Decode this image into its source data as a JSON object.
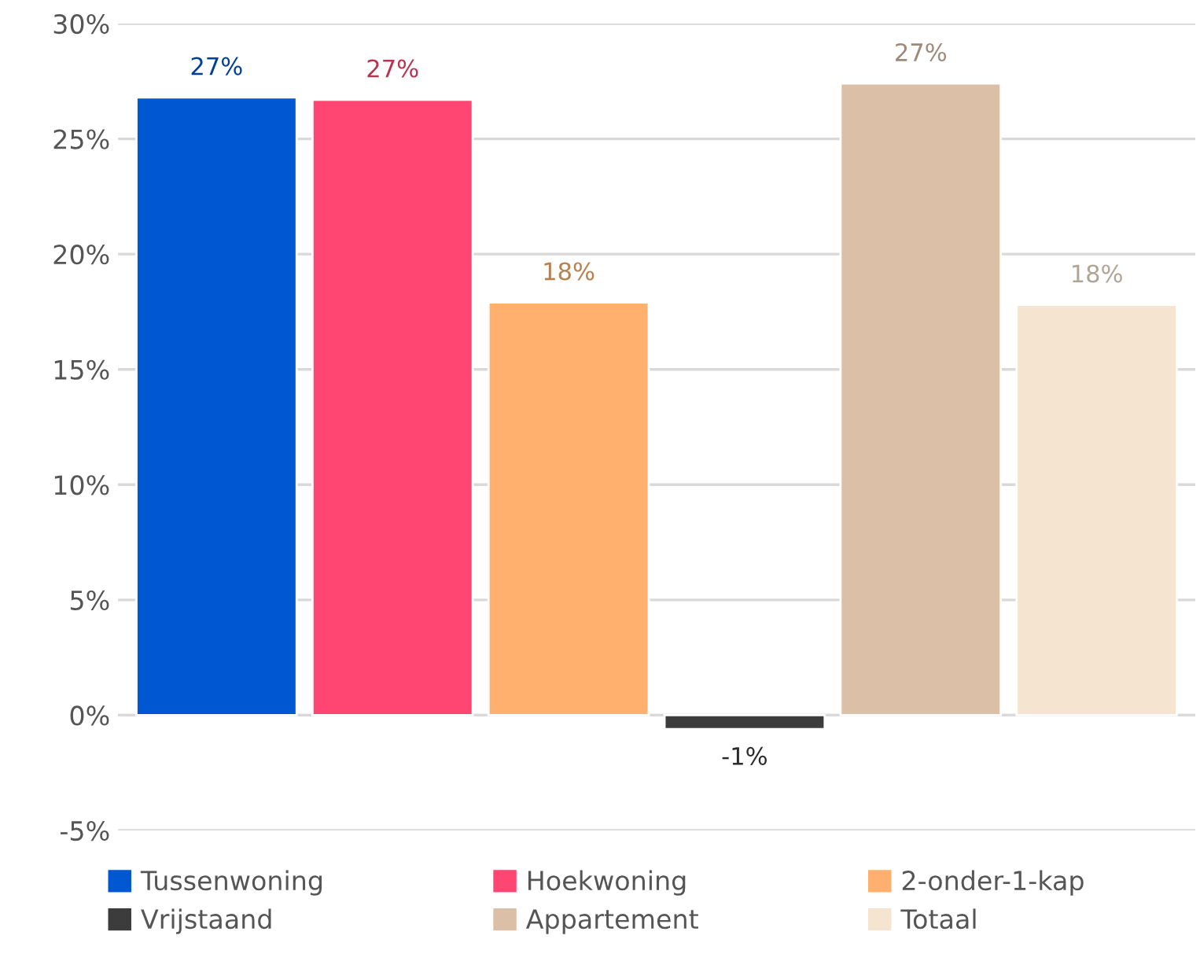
{
  "chart_data": {
    "type": "bar",
    "categories": [
      null
    ],
    "series": [
      {
        "name": "Tussenwoning",
        "color": "#0057d2",
        "values": [
          26.8
        ],
        "value_labels": [
          "27%"
        ]
      },
      {
        "name": "Hoekwoning",
        "color": "#ff4571",
        "values": [
          26.7
        ],
        "value_labels": [
          "27%"
        ]
      },
      {
        "name": "2-onder-1-kap",
        "color": "#ffb06e",
        "values": [
          17.9
        ],
        "value_labels": [
          "18%"
        ]
      },
      {
        "name": "Vrijstaand",
        "color": "#3c3c3c",
        "values": [
          -0.6
        ],
        "value_labels": [
          "-1%"
        ]
      },
      {
        "name": "Appartement",
        "color": "#dbbfa7",
        "values": [
          27.4
        ],
        "value_labels": [
          "27%"
        ]
      },
      {
        "name": "Totaal",
        "color": "#f5e4cf",
        "values": [
          17.8
        ],
        "value_labels": [
          "18%"
        ]
      }
    ],
    "ylim": [
      -5,
      30
    ],
    "yticks": [
      {
        "value": -5,
        "label": "-5%"
      },
      {
        "value": 0,
        "label": "0%"
      },
      {
        "value": 5,
        "label": "5%"
      },
      {
        "value": 10,
        "label": "10%"
      },
      {
        "value": 15,
        "label": "15%"
      },
      {
        "value": 20,
        "label": "20%"
      },
      {
        "value": 25,
        "label": "25%"
      },
      {
        "value": 30,
        "label": "30%"
      }
    ],
    "grid": "y",
    "legend": "bottom",
    "tick_labels": "y"
  }
}
